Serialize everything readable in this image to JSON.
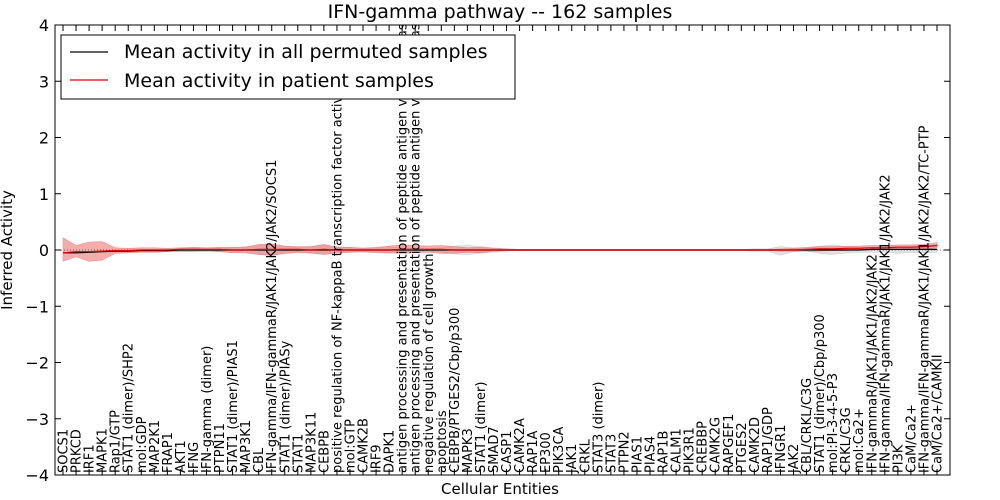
{
  "chart_data": {
    "type": "line",
    "title": "IFN-gamma pathway -- 162 samples",
    "xlabel": "Cellular Entities",
    "ylabel": "Inferred Activity",
    "ylim": [
      -4,
      4
    ],
    "yticks": [
      -4,
      -3,
      -2,
      -1,
      0,
      1,
      2,
      3,
      4
    ],
    "ytick_labels": [
      "−4",
      "−3",
      "−2",
      "−1",
      "0",
      "1",
      "2",
      "3",
      "4"
    ],
    "legend_position": "top-left",
    "colors": {
      "permuted": "#000000",
      "patient": "#e00000",
      "patient_band": "#f08080",
      "permuted_band": "#c8c8c8"
    },
    "categories": [
      "SOCS1",
      "PRKCD",
      "IRF1",
      "MAPK1",
      "Rap1/GTP",
      "STAT1 (dimer)/SHP2",
      "mol:GDP",
      "MAP2K1",
      "FRAP1",
      "AKT1",
      "IFNG",
      "IFN-gamma (dimer)",
      "PTPN11",
      "STAT1 (dimer)/PIAS1",
      "MAP3K1",
      "CBL",
      "IFN-gamma/IFN-gammaR/JAK1/JAK2/JAK2/SOCS1",
      "STAT1 (dimer)/PIASy",
      "STAT1",
      "MAP3K11",
      "CEBPB",
      "positive regulation of NF-kappaB transcription factor activity",
      "mol:GTP",
      "CAMK2B",
      "IRF9",
      "DAPK1",
      "antigen processing and presentation of peptide antigen via MHC class I",
      "antigen processing and presentation of peptide antigen via MHC class II",
      "negative regulation of cell growth",
      "apoptosis",
      "CEBPB/PTGES2/Cbp/p300",
      "MAPK3",
      "STAT1 (dimer)",
      "SMAD7",
      "CASP1",
      "CAMK2A",
      "RAP1A",
      "EP300",
      "PIK3CA",
      "JAK1",
      "CRKL",
      "STAT3 (dimer)",
      "STAT3",
      "PTPN2",
      "PIAS1",
      "PIAS4",
      "RAP1B",
      "CALM1",
      "PIK3R1",
      "CREBBP",
      "CAMK2G",
      "RAPGEF1",
      "PTGES2",
      "CAMK2D",
      "RAP1/GDP",
      "IFNGR1",
      "JAK2",
      "CBL/CRKL/C3G",
      "STAT1 (dimer)/Cbp/p300",
      "mol:PI-3-4-5-P3",
      "CRKL/C3G",
      "mol:Ca2+",
      "IFN-gammaR/JAK1/JAK1/JAK2/JAK2",
      "IFN-gamma/IFN-gammaR/JAK1/JAK1/JAK2/JAK2",
      "PI3K",
      "CaM/Ca2+",
      "IFN-gamma/IFN-gammaR/JAK1/JAK1/JAK2/JAK2/TC-PTP",
      "CaM/Ca2+/CAMKII"
    ],
    "series": [
      {
        "name": "Mean activity in all permuted samples",
        "values": [
          -0.05,
          -0.05,
          -0.04,
          -0.03,
          -0.02,
          -0.02,
          -0.01,
          -0.01,
          -0.01,
          0,
          0,
          0,
          0,
          0,
          0,
          0,
          0,
          0,
          0,
          0,
          0,
          0,
          0,
          0,
          0,
          0,
          0,
          0,
          0,
          0,
          0,
          0,
          0,
          0,
          0,
          0,
          0,
          0,
          0,
          0,
          0,
          0,
          0,
          0,
          0,
          0,
          0,
          0,
          0,
          0,
          0,
          0,
          0,
          0,
          0,
          0,
          0,
          0,
          0,
          0,
          0,
          0,
          0.01,
          0.01,
          0.01,
          0.01,
          0.01,
          0.01
        ],
        "lower": [
          -0.06,
          -0.06,
          -0.05,
          -0.04,
          -0.03,
          -0.03,
          -0.02,
          -0.02,
          -0.02,
          -0.03,
          -0.03,
          -0.02,
          -0.02,
          -0.04,
          -0.06,
          -0.08,
          -0.08,
          -0.06,
          -0.05,
          -0.06,
          -0.08,
          -0.06,
          -0.04,
          -0.04,
          -0.05,
          -0.06,
          -0.04,
          -0.03,
          -0.02,
          -0.04,
          -0.07,
          -0.08,
          -0.06,
          -0.04,
          -0.02,
          -0.01,
          -0.01,
          -0.01,
          -0.01,
          -0.01,
          -0.01,
          -0.01,
          -0.01,
          -0.01,
          -0.01,
          -0.01,
          -0.01,
          -0.01,
          -0.01,
          -0.01,
          -0.01,
          -0.01,
          -0.01,
          -0.02,
          -0.02,
          -0.09,
          -0.03,
          -0.02,
          -0.06,
          -0.08,
          -0.05,
          -0.04,
          -0.04,
          -0.03,
          -0.06,
          -0.04,
          -0.05,
          -0.04
        ],
        "upper": [
          -0.04,
          -0.04,
          -0.03,
          -0.02,
          -0.01,
          -0.01,
          0,
          0,
          0,
          0.03,
          0.03,
          0.02,
          0.02,
          0.04,
          0.06,
          0.08,
          0.08,
          0.06,
          0.05,
          0.06,
          0.08,
          0.06,
          0.04,
          0.04,
          0.05,
          0.06,
          0.04,
          0.03,
          0.02,
          0.04,
          0.07,
          0.08,
          0.06,
          0.04,
          0.02,
          0.01,
          0.01,
          0.01,
          0.01,
          0.01,
          0.01,
          0.01,
          0.01,
          0.01,
          0.01,
          0.01,
          0.01,
          0.01,
          0.01,
          0.01,
          0.01,
          0.01,
          0.01,
          0.02,
          0.02,
          0.06,
          0.04,
          0.05,
          0.07,
          0.09,
          0.06,
          0.05,
          0.05,
          0.05,
          0.06,
          0.05,
          0.06,
          0.06
        ]
      },
      {
        "name": "Mean activity in patient samples",
        "values": [
          -0.05,
          -0.03,
          -0.03,
          -0.02,
          -0.01,
          -0.01,
          0,
          0,
          0,
          0.01,
          0.01,
          0.01,
          0.01,
          0,
          0,
          0.01,
          0.01,
          0.01,
          0.01,
          0,
          0.01,
          0,
          0,
          0,
          0,
          0,
          0.01,
          0.01,
          0.01,
          0.01,
          0,
          0,
          0,
          0,
          0,
          0,
          0,
          0,
          0,
          0,
          0,
          0,
          0,
          0,
          0,
          0,
          0,
          0,
          0,
          0,
          0,
          0,
          0,
          0,
          0,
          0,
          0,
          0.01,
          0.02,
          0.02,
          0.03,
          0.03,
          0.04,
          0.04,
          0.05,
          0.05,
          0.06,
          0.08
        ],
        "lower": [
          -0.2,
          -0.12,
          -0.2,
          -0.18,
          -0.06,
          -0.05,
          -0.04,
          -0.04,
          -0.03,
          -0.02,
          -0.02,
          -0.02,
          -0.03,
          -0.05,
          -0.04,
          -0.08,
          -0.1,
          -0.06,
          -0.04,
          -0.05,
          -0.08,
          -0.05,
          -0.04,
          -0.03,
          -0.04,
          -0.05,
          -0.06,
          -0.05,
          -0.04,
          -0.06,
          -0.06,
          -0.04,
          -0.05,
          -0.02,
          -0.01,
          -0.01,
          -0.01,
          -0.01,
          -0.01,
          -0.01,
          -0.01,
          -0.01,
          -0.01,
          -0.01,
          -0.01,
          -0.01,
          -0.01,
          -0.01,
          -0.01,
          -0.01,
          -0.01,
          -0.01,
          -0.01,
          -0.01,
          -0.01,
          -0.02,
          -0.02,
          -0.02,
          -0.02,
          -0.01,
          -0.01,
          0,
          0,
          0.01,
          0.01,
          0.02,
          0.02,
          0.04
        ],
        "upper": [
          0.22,
          0.08,
          0.14,
          0.15,
          0.04,
          0.03,
          0.04,
          0.04,
          0.03,
          0.04,
          0.05,
          0.04,
          0.05,
          0.05,
          0.05,
          0.1,
          0.11,
          0.07,
          0.06,
          0.06,
          0.1,
          0.05,
          0.05,
          0.03,
          0.04,
          0.07,
          0.09,
          0.08,
          0.07,
          0.08,
          0.06,
          0.04,
          0.05,
          0.03,
          0.02,
          0.01,
          0.01,
          0.01,
          0.01,
          0.01,
          0.01,
          0.01,
          0.01,
          0.01,
          0.01,
          0.01,
          0.01,
          0.01,
          0.01,
          0.01,
          0.01,
          0.01,
          0.01,
          0.01,
          0.01,
          0.02,
          0.03,
          0.04,
          0.06,
          0.06,
          0.07,
          0.07,
          0.08,
          0.08,
          0.09,
          0.09,
          0.1,
          0.13
        ]
      }
    ]
  }
}
